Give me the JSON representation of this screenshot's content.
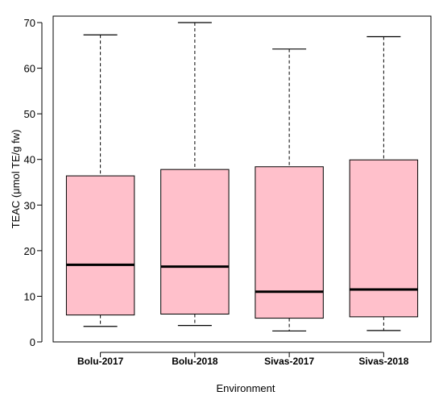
{
  "chart_data": {
    "type": "box",
    "xlabel": "Environment",
    "ylabel": "TEAC (μmol TE/g fw)",
    "ylim": [
      0,
      70
    ],
    "yticks": [
      0,
      10,
      20,
      30,
      40,
      50,
      60,
      70
    ],
    "categories": [
      "Bolu-2017",
      "Bolu-2018",
      "Sivas-2017",
      "Sivas-2018"
    ],
    "boxes": [
      {
        "min": 3.4,
        "q1": 5.9,
        "median": 16.9,
        "q3": 36.4,
        "max": 67.3
      },
      {
        "min": 3.6,
        "q1": 6.1,
        "median": 16.5,
        "q3": 37.8,
        "max": 70.0
      },
      {
        "min": 2.4,
        "q1": 5.2,
        "median": 11.0,
        "q3": 38.4,
        "max": 64.2
      },
      {
        "min": 2.5,
        "q1": 5.5,
        "median": 11.5,
        "q3": 39.9,
        "max": 66.9
      }
    ],
    "box_color": "#ffc0cb",
    "grid": false,
    "legend": "none"
  }
}
